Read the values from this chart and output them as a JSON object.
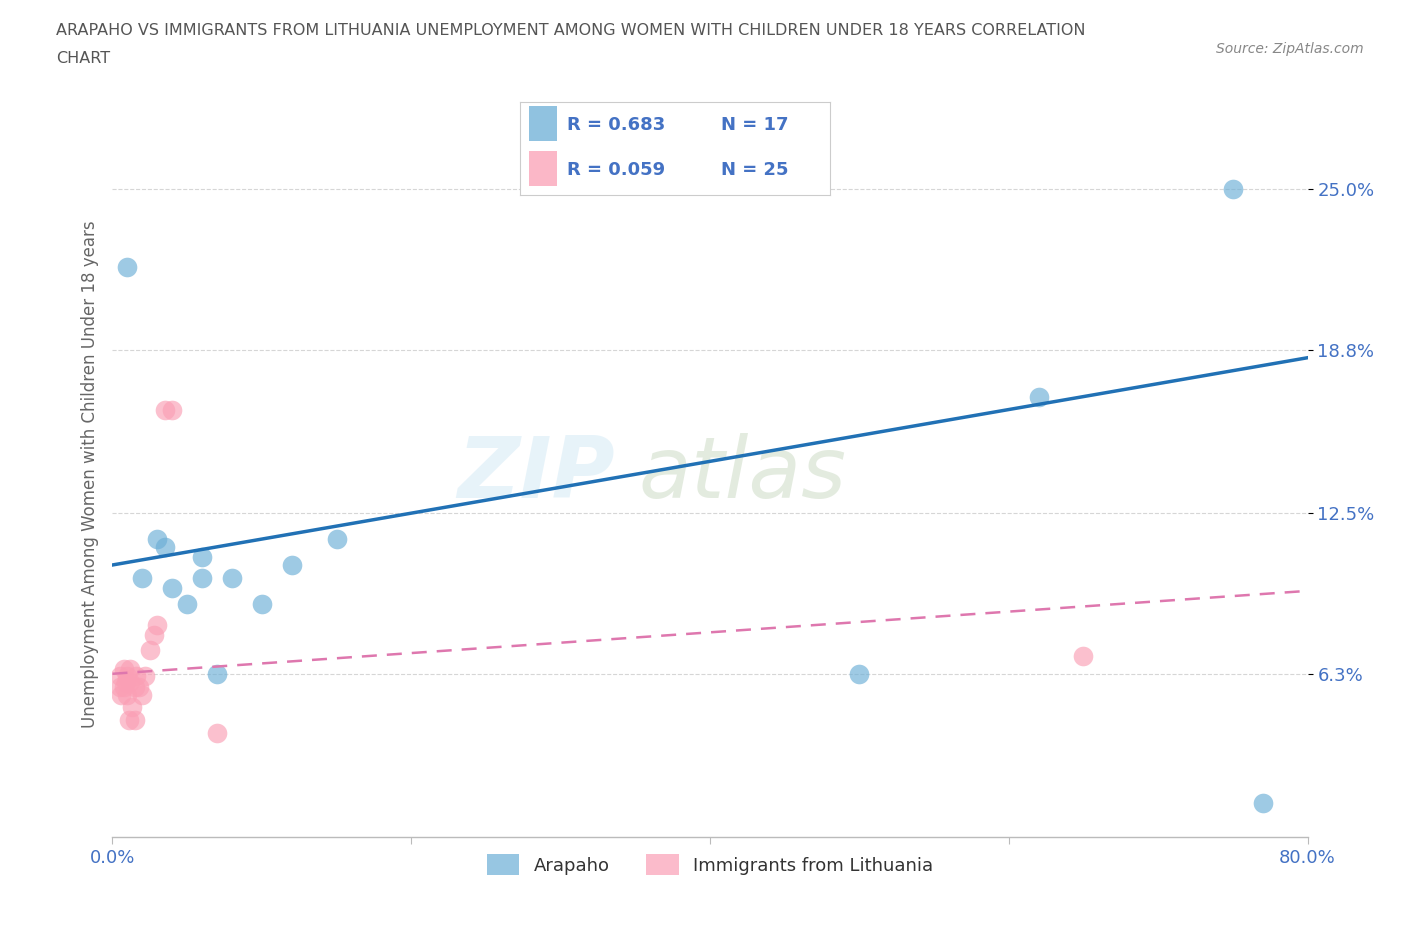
{
  "title": "ARAPAHO VS IMMIGRANTS FROM LITHUANIA UNEMPLOYMENT AMONG WOMEN WITH CHILDREN UNDER 18 YEARS CORRELATION\nCHART",
  "source": "Source: ZipAtlas.com",
  "ylabel": "Unemployment Among Women with Children Under 18 years",
  "xlim": [
    0.0,
    0.8
  ],
  "ylim": [
    0.0,
    0.28
  ],
  "xticks": [
    0.0,
    0.2,
    0.4,
    0.6,
    0.8
  ],
  "xtick_labels": [
    "0.0%",
    "",
    "",
    "",
    "80.0%"
  ],
  "yticks": [
    0.063,
    0.125,
    0.188,
    0.25
  ],
  "ytick_labels": [
    "6.3%",
    "12.5%",
    "18.8%",
    "25.0%"
  ],
  "arapaho_x": [
    0.01,
    0.02,
    0.03,
    0.035,
    0.04,
    0.05,
    0.06,
    0.06,
    0.07,
    0.08,
    0.1,
    0.12,
    0.15,
    0.5,
    0.62,
    0.75,
    0.77
  ],
  "arapaho_y": [
    0.22,
    0.1,
    0.115,
    0.112,
    0.096,
    0.09,
    0.1,
    0.108,
    0.063,
    0.1,
    0.09,
    0.105,
    0.115,
    0.063,
    0.17,
    0.25,
    0.013
  ],
  "lithuania_x": [
    0.005,
    0.005,
    0.006,
    0.008,
    0.008,
    0.009,
    0.01,
    0.01,
    0.011,
    0.012,
    0.012,
    0.013,
    0.015,
    0.015,
    0.016,
    0.018,
    0.02,
    0.022,
    0.025,
    0.028,
    0.03,
    0.035,
    0.04,
    0.07,
    0.65
  ],
  "lithuania_y": [
    0.062,
    0.058,
    0.055,
    0.058,
    0.065,
    0.06,
    0.062,
    0.055,
    0.045,
    0.065,
    0.06,
    0.05,
    0.058,
    0.045,
    0.062,
    0.058,
    0.055,
    0.062,
    0.072,
    0.078,
    0.082,
    0.165,
    0.165,
    0.04,
    0.07
  ],
  "arapaho_color": "#6baed6",
  "lithuania_color": "#fa9fb5",
  "arapaho_line_color": "#2171b5",
  "lithuania_line_color": "#de77ae",
  "r_arapaho": "R = 0.683",
  "n_arapaho": "N = 17",
  "r_lithuania": "R = 0.059",
  "n_lithuania": "N = 25",
  "watermark_zip": "ZIP",
  "watermark_atlas": "atlas",
  "background_color": "#ffffff",
  "grid_color": "#cccccc",
  "title_color": "#555555",
  "axis_label_color": "#666666",
  "tick_label_color": "#4472C4",
  "legend_r_color": "#4472C4",
  "legend_label_color": "#333333"
}
